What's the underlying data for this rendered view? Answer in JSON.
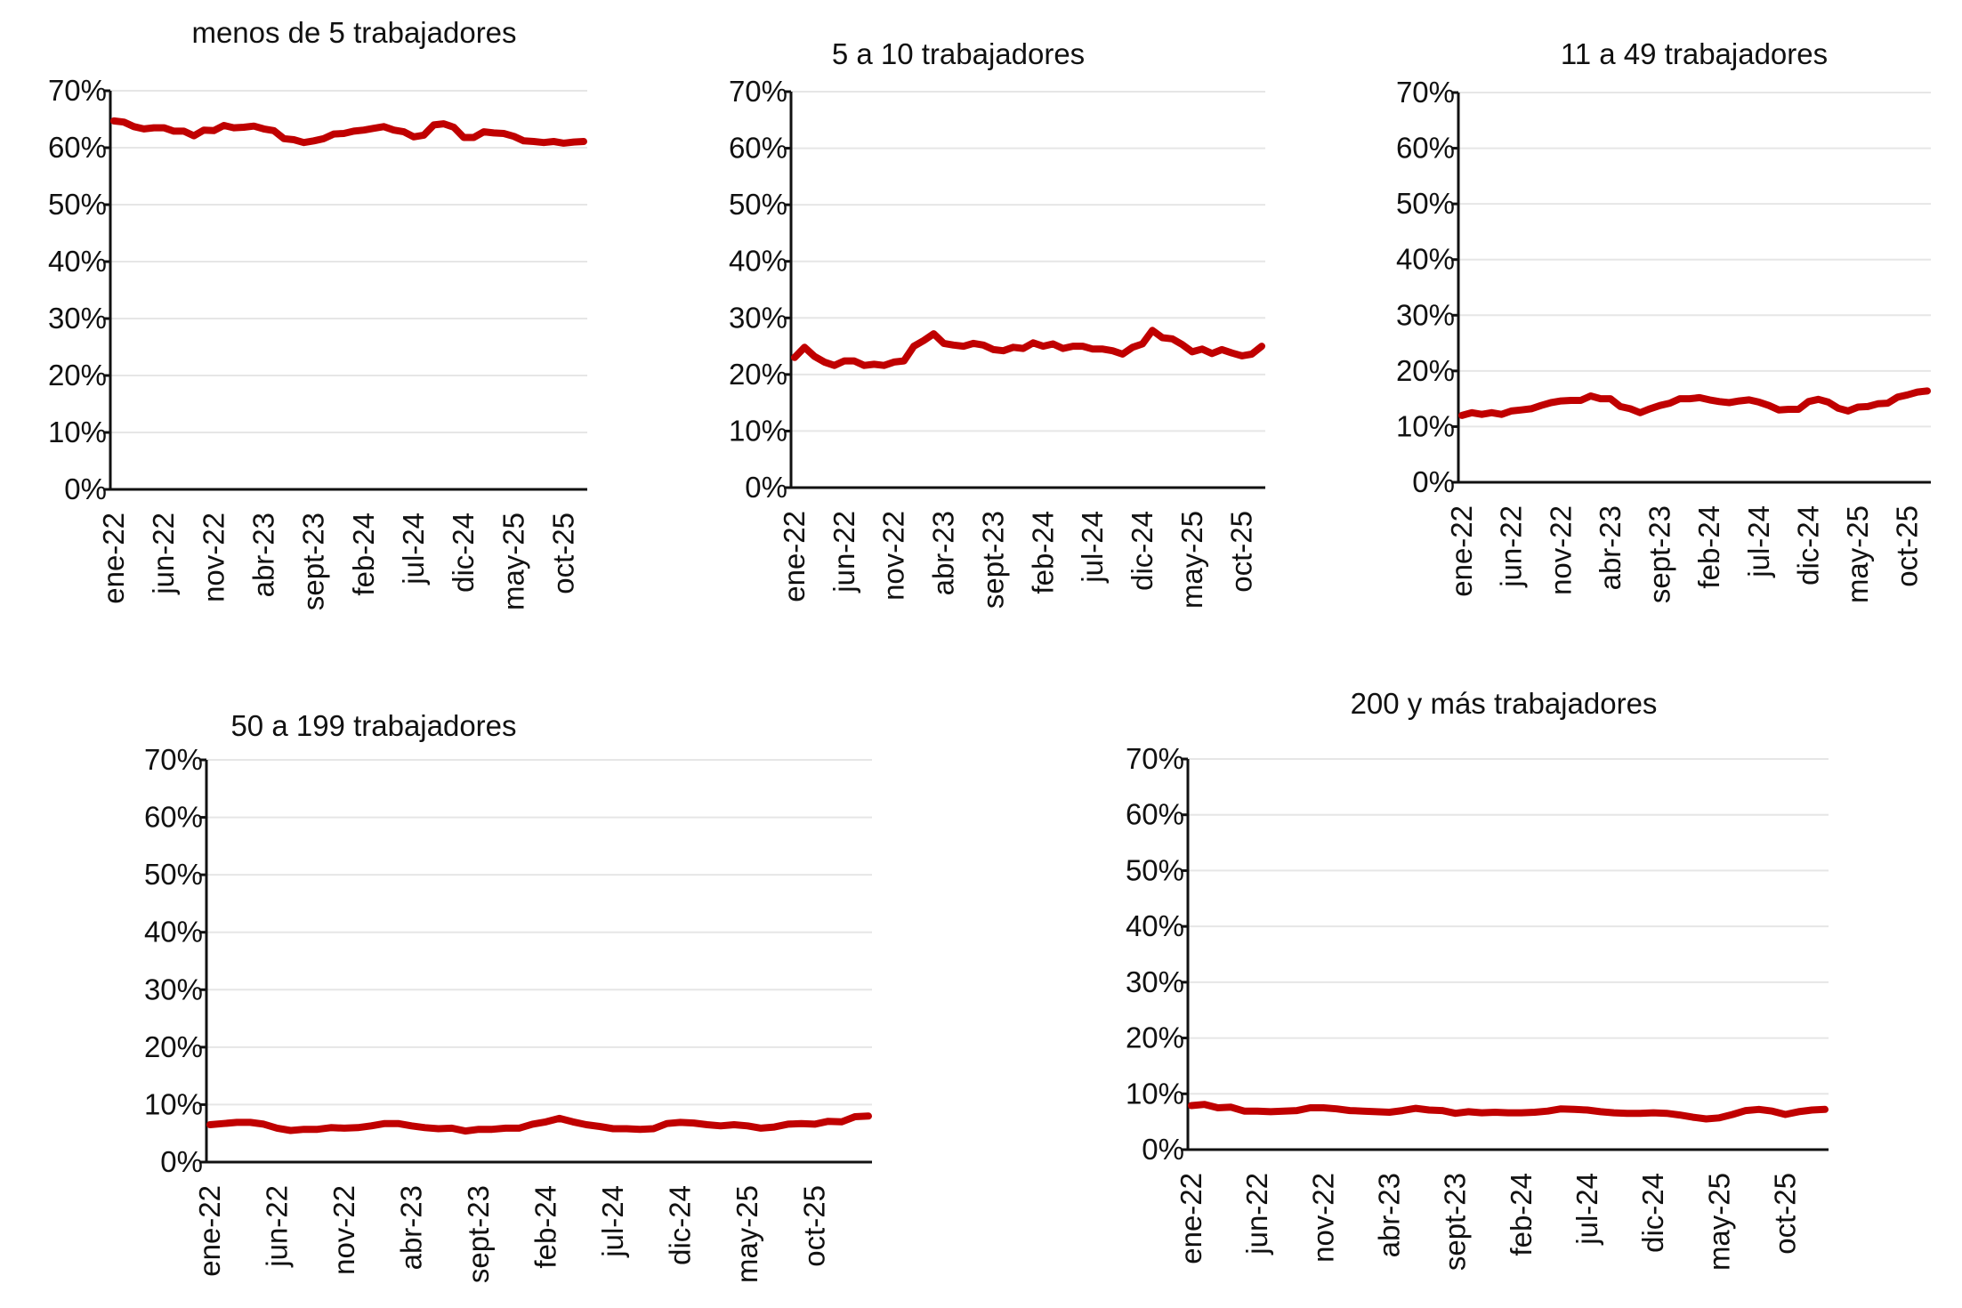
{
  "colors": {
    "series": "#c00000",
    "axis": "#111111",
    "grid": "#e6e6e6"
  },
  "chart_data": [
    {
      "type": "line",
      "title": "menos de 5 trabajadores",
      "ylim": [
        0,
        70
      ],
      "yticks": [
        "0%",
        "10%",
        "20%",
        "30%",
        "40%",
        "50%",
        "60%",
        "70%"
      ],
      "xticks": [
        "ene-22",
        "jun-22",
        "nov-22",
        "abr-23",
        "sept-23",
        "feb-24",
        "jul-24",
        "dic-24",
        "may-25",
        "oct-25"
      ],
      "series": [
        {
          "name": "menos de 5 trabajadores",
          "values": [
            64.7,
            64.5,
            63.7,
            63.3,
            63.5,
            63.5,
            62.9,
            62.9,
            62.1,
            63.1,
            63.0,
            63.9,
            63.5,
            63.6,
            63.8,
            63.3,
            63.0,
            61.6,
            61.4,
            60.9,
            61.2,
            61.6,
            62.4,
            62.5,
            62.9,
            63.1,
            63.4,
            63.7,
            63.1,
            62.8,
            61.9,
            62.2,
            64.0,
            64.2,
            63.6,
            61.8,
            61.8,
            62.8,
            62.6,
            62.5,
            62.0,
            61.2,
            61.1,
            60.9,
            61.1,
            60.8,
            61.0,
            61.1
          ]
        }
      ]
    },
    {
      "type": "line",
      "title": "5 a 10 trabajadores",
      "ylim": [
        0,
        70
      ],
      "yticks": [
        "0%",
        "10%",
        "20%",
        "30%",
        "40%",
        "50%",
        "60%",
        "70%"
      ],
      "xticks": [
        "ene-22",
        "jun-22",
        "nov-22",
        "abr-23",
        "sept-23",
        "feb-24",
        "jul-24",
        "dic-24",
        "may-25",
        "oct-25"
      ],
      "series": [
        {
          "name": "5 a 10 trabajadores",
          "values": [
            23.0,
            24.8,
            23.2,
            22.2,
            21.6,
            22.4,
            22.4,
            21.6,
            21.8,
            21.6,
            22.2,
            22.4,
            25.0,
            26.0,
            27.2,
            25.5,
            25.2,
            25.0,
            25.5,
            25.2,
            24.4,
            24.2,
            24.8,
            24.6,
            25.6,
            25.0,
            25.4,
            24.6,
            25.0,
            25.0,
            24.5,
            24.5,
            24.2,
            23.6,
            24.8,
            25.4,
            27.8,
            26.5,
            26.3,
            25.3,
            24.0,
            24.5,
            23.7,
            24.4,
            23.8,
            23.3,
            23.6,
            25.0
          ]
        }
      ]
    },
    {
      "type": "line",
      "title": "11 a 49 trabajadores",
      "ylim": [
        0,
        70
      ],
      "yticks": [
        "0%",
        "10%",
        "20%",
        "30%",
        "40%",
        "50%",
        "60%",
        "70%"
      ],
      "xticks": [
        "ene-22",
        "jun-22",
        "nov-22",
        "abr-23",
        "sept-23",
        "feb-24",
        "jul-24",
        "dic-24",
        "may-25",
        "oct-25"
      ],
      "series": [
        {
          "name": "11 a 49 trabajadores",
          "values": [
            12.0,
            12.5,
            12.2,
            12.5,
            12.2,
            12.8,
            13.0,
            13.2,
            13.8,
            14.3,
            14.6,
            14.7,
            14.7,
            15.5,
            15.0,
            15.0,
            13.6,
            13.2,
            12.5,
            13.2,
            13.8,
            14.2,
            15.0,
            15.0,
            15.2,
            14.8,
            14.5,
            14.3,
            14.6,
            14.8,
            14.4,
            13.8,
            13.0,
            13.1,
            13.1,
            14.5,
            14.9,
            14.4,
            13.3,
            12.8,
            13.5,
            13.6,
            14.1,
            14.2,
            15.3,
            15.7,
            16.2,
            16.4
          ]
        }
      ]
    },
    {
      "type": "line",
      "title": "50 a 199 trabajadores",
      "ylim": [
        0,
        70
      ],
      "yticks": [
        "0%",
        "10%",
        "20%",
        "30%",
        "40%",
        "50%",
        "60%",
        "70%"
      ],
      "xticks": [
        "ene-22",
        "jun-22",
        "nov-22",
        "abr-23",
        "sept-23",
        "feb-24",
        "jul-24",
        "dic-24",
        "may-25",
        "oct-25"
      ],
      "series": [
        {
          "name": "50 a 199 trabajadores",
          "values": [
            6.5,
            6.7,
            6.9,
            6.9,
            6.6,
            5.9,
            5.5,
            5.7,
            5.7,
            6.0,
            5.9,
            6.0,
            6.3,
            6.7,
            6.7,
            6.3,
            6.0,
            5.8,
            5.9,
            5.4,
            5.7,
            5.7,
            5.9,
            5.9,
            6.6,
            7.0,
            7.6,
            7.0,
            6.5,
            6.2,
            5.8,
            5.8,
            5.7,
            5.8,
            6.7,
            6.9,
            6.8,
            6.5,
            6.3,
            6.5,
            6.3,
            5.9,
            6.1,
            6.6,
            6.7,
            6.6,
            7.1,
            7.0,
            7.9,
            8.0
          ]
        }
      ]
    },
    {
      "type": "line",
      "title": "200 y más trabajadores",
      "ylim": [
        0,
        70
      ],
      "yticks": [
        "0%",
        "10%",
        "20%",
        "30%",
        "40%",
        "50%",
        "60%",
        "70%"
      ],
      "xticks": [
        "ene-22",
        "jun-22",
        "nov-22",
        "abr-23",
        "sept-23",
        "feb-24",
        "jul-24",
        "dic-24",
        "may-25",
        "oct-25"
      ],
      "series": [
        {
          "name": "200 y más trabajadores",
          "values": [
            7.9,
            8.1,
            7.5,
            7.6,
            6.9,
            6.9,
            6.8,
            6.9,
            7.0,
            7.5,
            7.5,
            7.3,
            7.0,
            6.9,
            6.8,
            6.7,
            7.0,
            7.4,
            7.1,
            7.0,
            6.5,
            6.8,
            6.6,
            6.7,
            6.6,
            6.6,
            6.7,
            6.9,
            7.3,
            7.2,
            7.1,
            6.8,
            6.6,
            6.5,
            6.5,
            6.6,
            6.5,
            6.2,
            5.8,
            5.5,
            5.7,
            6.3,
            7.0,
            7.2,
            6.9,
            6.3,
            6.8,
            7.1,
            7.2
          ]
        }
      ]
    }
  ]
}
